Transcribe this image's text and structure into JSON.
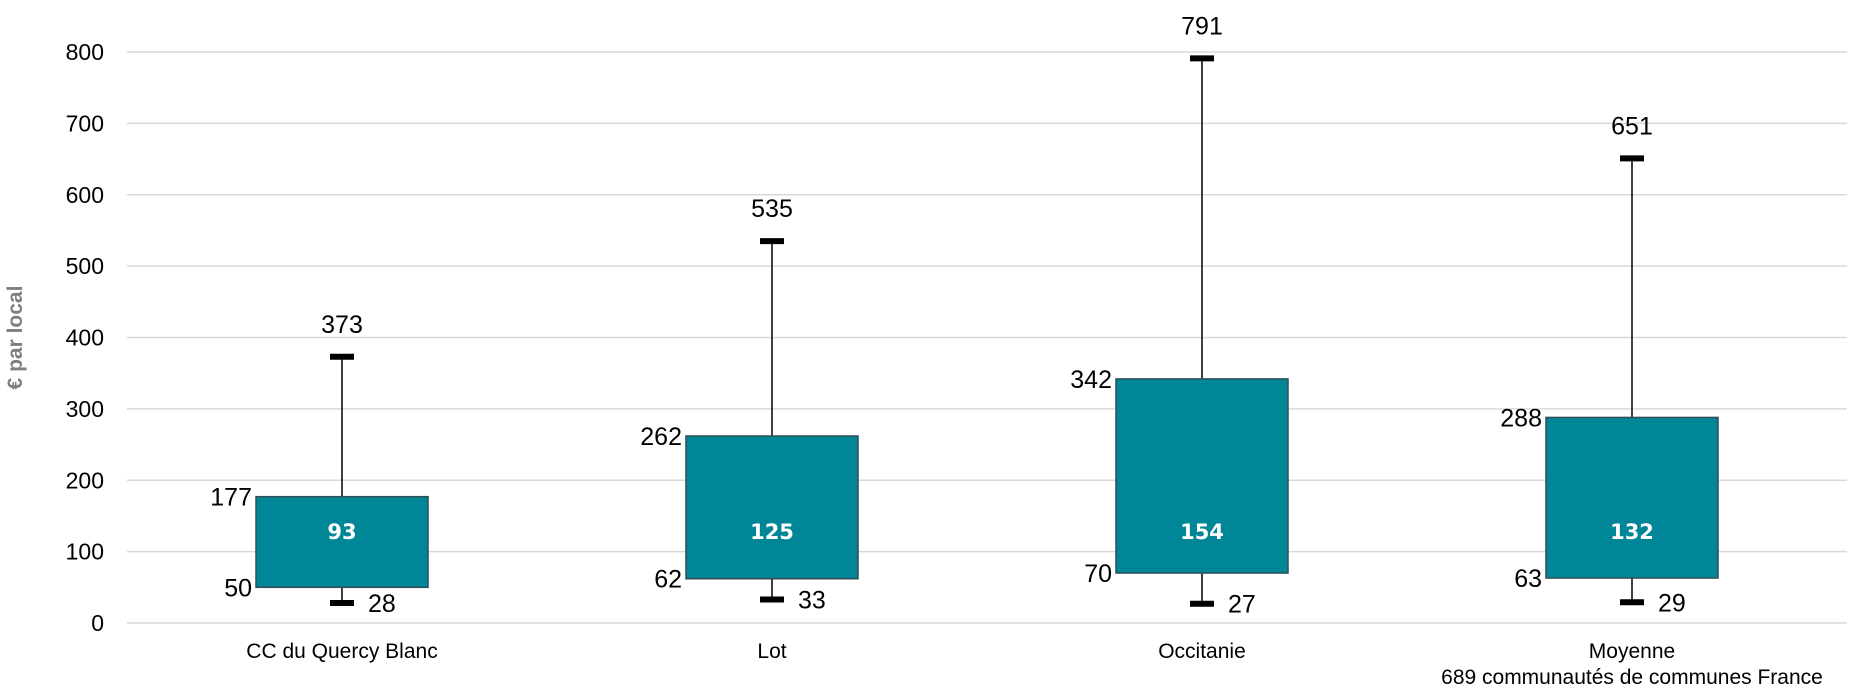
{
  "chart_data": {
    "type": "boxplot",
    "ylabel": "€ par local",
    "ylim": [
      0,
      800
    ],
    "yticks": [
      0,
      100,
      200,
      300,
      400,
      500,
      600,
      700,
      800
    ],
    "grid": true,
    "categories": [
      {
        "label": [
          "CC du Quercy Blanc"
        ],
        "min": 28,
        "q1": 50,
        "median": 93,
        "q3": 177,
        "max": 373
      },
      {
        "label": [
          "Lot"
        ],
        "min": 33,
        "q1": 62,
        "median": 125,
        "q3": 262,
        "max": 535
      },
      {
        "label": [
          "Occitanie"
        ],
        "min": 27,
        "q1": 70,
        "median": 154,
        "q3": 342,
        "max": 791
      },
      {
        "label": [
          "Moyenne",
          "689 communautés de communes France"
        ],
        "min": 29,
        "q1": 63,
        "median": 132,
        "q3": 288,
        "max": 651
      }
    ],
    "colors": {
      "box": "#008696",
      "box_edge": "#2f4f55",
      "grid": "#d9d9d9",
      "whisker": "#000000"
    }
  }
}
